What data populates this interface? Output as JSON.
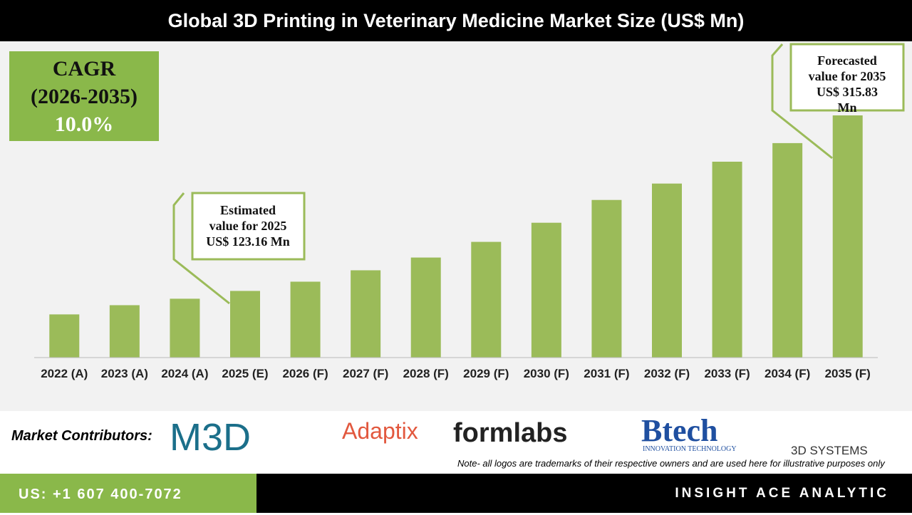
{
  "chart_data": {
    "type": "bar",
    "title": "Global 3D Printing in Veterinary Medicine Market Size (US$ Mn)",
    "categories": [
      "2022 (A)",
      "2023 (A)",
      "2024 (A)",
      "2025 (E)",
      "2026 (F)",
      "2027 (F)",
      "2028 (F)",
      "2029 (F)",
      "2030 (F)",
      "2031 (F)",
      "2032 (F)",
      "2033 (F)",
      "2034 (F)",
      "2035 (F)"
    ],
    "values": [
      97.4,
      107.5,
      114.6,
      123.16,
      133.3,
      145.8,
      159.8,
      177.0,
      198.0,
      223.0,
      241.0,
      265.0,
      285.4,
      315.83
    ],
    "color": "#9bbb59",
    "ylim": [
      50,
      394
    ],
    "cagr": {
      "label": "CAGR",
      "period": "(2026-2035)",
      "value": "10.0%"
    },
    "annotations": [
      {
        "lines": [
          "Estimated",
          "value for 2025",
          "US$ 123.16 Mn"
        ]
      },
      {
        "lines": [
          "Forecasted",
          "value for 2035",
          "US$ 315.83",
          "Mn"
        ]
      }
    ]
  },
  "contributors": {
    "label": "Market Contributors:",
    "logos": [
      "M3D",
      "Adaptix",
      "formlabs",
      "Btech",
      "INNOVATION TECHNOLOGY",
      "3D SYSTEMS"
    ],
    "note": "Note- all logos are trademarks of their respective owners and are used here for illustrative purposes only"
  },
  "footer": {
    "phone": "US: +1 607 400-7072",
    "company": "INSIGHT ACE ANALYTIC"
  }
}
